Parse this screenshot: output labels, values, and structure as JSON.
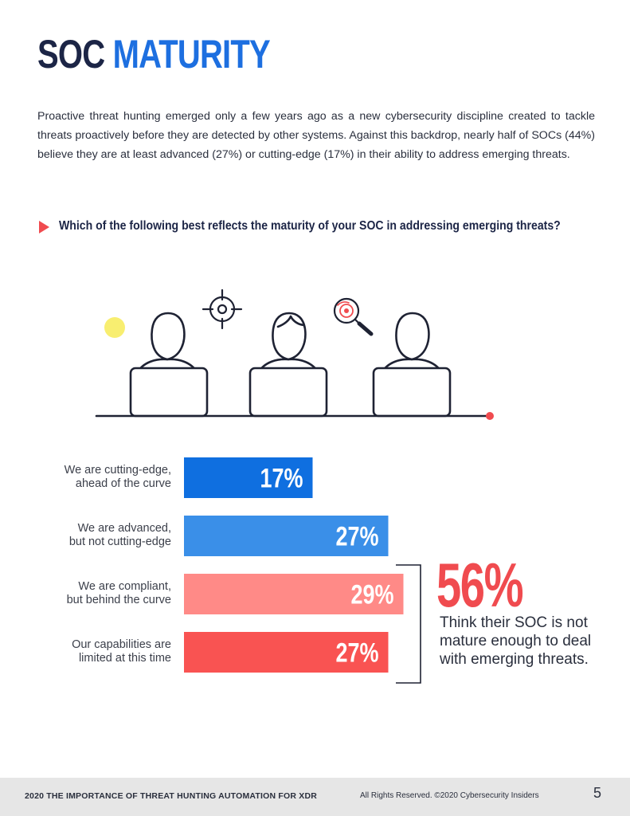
{
  "header": {
    "title_part1": "SOC",
    "title_part2": "MATURITY"
  },
  "intro": "Proactive threat hunting emerged only a few years ago as a new cybersecurity discipline created to tackle threats proactively before they are detected by other systems. Against this backdrop, nearly half of SOCs (44%) believe they are at least advanced (27%) or cutting-edge (17%) in their ability to address emerging threats.",
  "question": "Which of the following best reflects the maturity of your SOC in addressing emerging threats?",
  "colors": {
    "title_dark": "#1c2546",
    "title_blue": "#1d6fe0",
    "accent_red": "#f04b4f",
    "bar_1": "#0f6fe0",
    "bar_2": "#3a8fe8",
    "bar_3": "#ff8a87",
    "bar_4": "#f95352",
    "illustration_line": "#1e2233",
    "yellow_dot": "#f8ee70"
  },
  "chart_data": {
    "type": "bar",
    "orientation": "horizontal",
    "categories": [
      [
        "We are cutting-edge,",
        "ahead of the curve"
      ],
      [
        "We are advanced,",
        "but not cutting-edge"
      ],
      [
        "We are compliant,",
        "but behind the curve"
      ],
      [
        "Our capabilities are",
        "limited at this time"
      ]
    ],
    "values": [
      17,
      27,
      29,
      27
    ],
    "value_labels": [
      "17%",
      "27%",
      "29%",
      "27%"
    ],
    "unit": "%",
    "xlim": [
      0,
      30
    ],
    "grid": false,
    "title": "",
    "xlabel": "",
    "ylabel": ""
  },
  "callout": {
    "value": "56%",
    "text": "Think their SOC is not mature enough to deal with emerging threats."
  },
  "footer": {
    "left": "2020 THE IMPORTANCE OF THREAT HUNTING AUTOMATION FOR XDR",
    "right": "All Rights Reserved.  ©2020 Cybersecurity Insiders",
    "page": "5"
  }
}
